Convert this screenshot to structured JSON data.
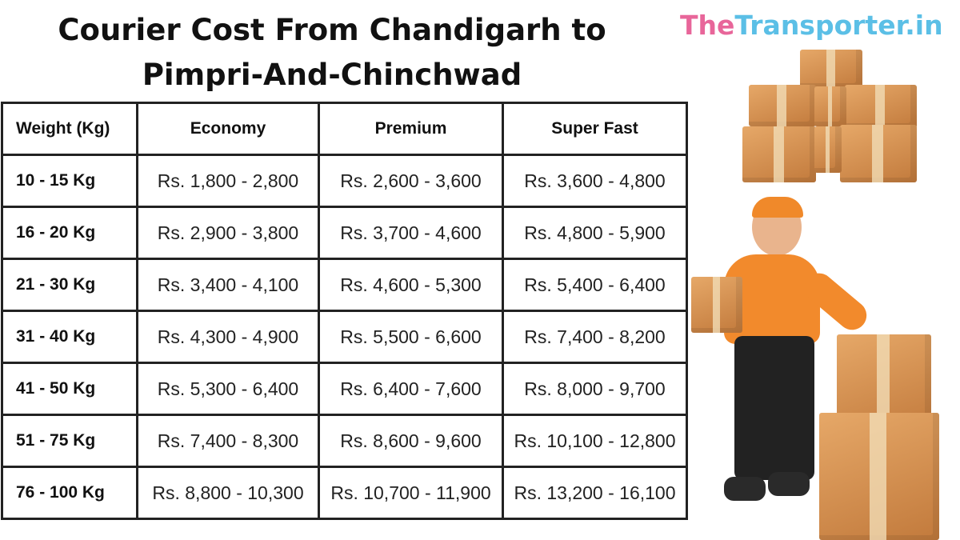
{
  "title_line1": "Courier Cost From Chandigarh to",
  "title_line2": "Pimpri-And-Chinchwad",
  "logo": {
    "part1": "The",
    "part2": "Transporter.in",
    "color1": "#e8669a",
    "color2": "#5bbfe6"
  },
  "table": {
    "headers": [
      "Weight (Kg)",
      "Economy",
      "Premium",
      "Super Fast"
    ],
    "rows": [
      [
        "10 - 15 Kg",
        "Rs. 1,800 - 2,800",
        "Rs. 2,600 - 3,600",
        "Rs. 3,600 - 4,800"
      ],
      [
        "16 - 20 Kg",
        "Rs. 2,900 - 3,800",
        "Rs. 3,700 - 4,600",
        "Rs. 4,800 - 5,900"
      ],
      [
        "21 - 30 Kg",
        "Rs. 3,400 - 4,100",
        "Rs. 4,600 - 5,300",
        "Rs. 5,400 - 6,400"
      ],
      [
        "31 - 40 Kg",
        "Rs. 4,300 - 4,900",
        "Rs. 5,500 - 6,600",
        "Rs. 7,400 - 8,200"
      ],
      [
        "41 - 50 Kg",
        "Rs. 5,300 - 6,400",
        "Rs. 6,400 - 7,600",
        "Rs. 8,000 - 9,700"
      ],
      [
        "51 - 75 Kg",
        "Rs. 7,400 - 8,300",
        "Rs. 8,600 - 9,600",
        "Rs. 10,100 - 12,800"
      ],
      [
        "76 - 100 Kg",
        "Rs. 8,800 - 10,300",
        "Rs. 10,700 - 11,900",
        "Rs. 13,200 - 16,100"
      ]
    ]
  },
  "illustrations": [
    "stacked-boxes-illustration",
    "delivery-man-illustration"
  ]
}
